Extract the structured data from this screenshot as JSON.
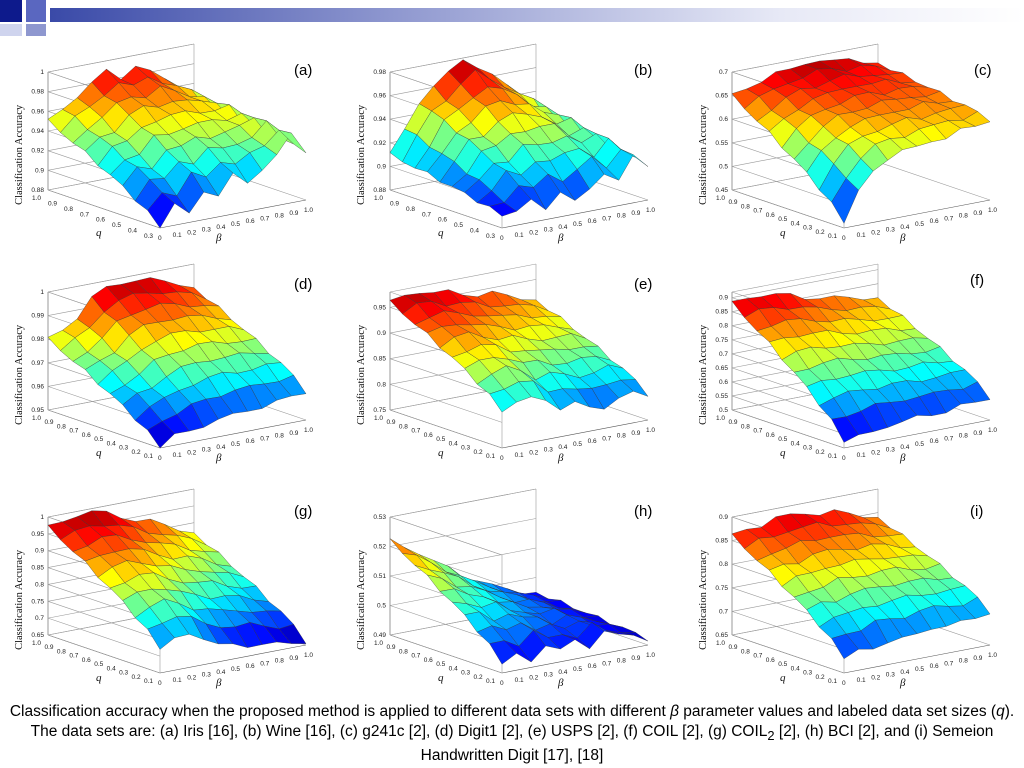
{
  "colors": {
    "brand_dark": "#0d1a8c",
    "brand_mid": "#5a67c0",
    "brand_light": "#cfd4ee",
    "gradient_start": "#3a4aa8"
  },
  "chart_data": [
    {
      "id": "a",
      "type": "surface3d",
      "label": "(a)",
      "zlabel": "Classification Accuracy",
      "xlabel": "q",
      "ylabel": "β",
      "q_ticks": [
        "1.0",
        "0.9",
        "0.8",
        "0.7",
        "0.6",
        "0.5",
        "0.4",
        "0.3"
      ],
      "beta_ticks": [
        "0",
        "0.1",
        "0.2",
        "0.3",
        "0.4",
        "0.5",
        "0.6",
        "0.7",
        "0.8",
        "0.9",
        "1.0"
      ],
      "z_ticks": [
        "0.88",
        "0.9",
        "0.92",
        "0.94",
        "0.96",
        "0.98",
        "1"
      ],
      "zlim": [
        0.88,
        1.0
      ],
      "z_front": [
        0.88,
        0.9,
        0.89,
        0.91,
        0.9,
        0.92,
        0.91,
        0.92,
        0.93,
        0.95,
        0.93
      ],
      "z_back": [
        0.95,
        0.96,
        0.97,
        0.98,
        0.99,
        0.98,
        0.99,
        0.98,
        0.97,
        0.96,
        0.94
      ]
    },
    {
      "id": "b",
      "type": "surface3d",
      "label": "(b)",
      "zlabel": "Classification Accuracy",
      "xlabel": "q",
      "ylabel": "β",
      "q_ticks": [
        "1.0",
        "0.9",
        "0.8",
        "0.7",
        "0.6",
        "0.5",
        "0.4",
        "0.3"
      ],
      "beta_ticks": [
        "0",
        "0.1",
        "0.2",
        "0.3",
        "0.4",
        "0.5",
        "0.6",
        "0.7",
        "0.8",
        "0.9",
        "1.0"
      ],
      "z_ticks": [
        "0.88",
        "0.9",
        "0.92",
        "0.94",
        "0.96",
        "0.98"
      ],
      "zlim": [
        0.88,
        0.98
      ],
      "z_front": [
        0.89,
        0.89,
        0.9,
        0.89,
        0.9,
        0.89,
        0.9,
        0.91,
        0.9,
        0.92,
        0.91
      ],
      "z_back": [
        0.91,
        0.93,
        0.95,
        0.96,
        0.97,
        0.98,
        0.97,
        0.96,
        0.95,
        0.94,
        0.92
      ]
    },
    {
      "id": "c",
      "type": "surface3d",
      "label": "(c)",
      "zlabel": "Classification Accuracy",
      "xlabel": "q",
      "ylabel": "β",
      "q_ticks": [
        "1.0",
        "0.9",
        "0.8",
        "0.7",
        "0.6",
        "0.5",
        "0.4",
        "0.3",
        "0.2",
        "0.1"
      ],
      "beta_ticks": [
        "0",
        "0.1",
        "0.2",
        "0.3",
        "0.4",
        "0.5",
        "0.6",
        "0.7",
        "0.8",
        "0.9",
        "1.0"
      ],
      "z_ticks": [
        "0.45",
        "0.5",
        "0.55",
        "0.6",
        "0.65",
        "0.7"
      ],
      "zlim": [
        0.45,
        0.7
      ],
      "z_front": [
        0.46,
        0.52,
        0.56,
        0.58,
        0.59,
        0.59,
        0.6,
        0.6,
        0.61,
        0.61,
        0.62
      ],
      "z_back": [
        0.65,
        0.66,
        0.67,
        0.68,
        0.68,
        0.69,
        0.69,
        0.68,
        0.68,
        0.67,
        0.66
      ]
    },
    {
      "id": "d",
      "type": "surface3d",
      "label": "(d)",
      "zlabel": "Classification Accuracy",
      "xlabel": "q",
      "ylabel": "β",
      "q_ticks": [
        "1.0",
        "0.9",
        "0.8",
        "0.7",
        "0.6",
        "0.5",
        "0.4",
        "0.3",
        "0.2",
        "0.1"
      ],
      "beta_ticks": [
        "0",
        "0.1",
        "0.2",
        "0.3",
        "0.4",
        "0.5",
        "0.6",
        "0.7",
        "0.8",
        "0.9",
        "1.0"
      ],
      "z_ticks": [
        "0.95",
        "0.96",
        "0.97",
        "0.98",
        "0.99",
        "1"
      ],
      "zlim": [
        0.95,
        1.0
      ],
      "z_front": [
        0.95,
        0.954,
        0.955,
        0.956,
        0.957,
        0.958,
        0.959,
        0.959,
        0.96,
        0.961,
        0.962
      ],
      "z_back": [
        0.98,
        0.983,
        0.987,
        0.994,
        0.997,
        0.998,
        0.998,
        0.997,
        0.995,
        0.993,
        0.99
      ]
    },
    {
      "id": "e",
      "type": "surface3d",
      "label": "(e)",
      "zlabel": "Classification Accuracy",
      "xlabel": "q",
      "ylabel": "β",
      "q_ticks": [
        "1.0",
        "0.9",
        "0.8",
        "0.7",
        "0.6",
        "0.5",
        "0.4",
        "0.3",
        "0.2",
        "0.1"
      ],
      "beta_ticks": [
        "0",
        "0.1",
        "0.2",
        "0.3",
        "0.4",
        "0.5",
        "0.6",
        "0.7",
        "0.8",
        "0.9",
        "1.0"
      ],
      "z_ticks": [
        "0.75",
        "0.8",
        "0.85",
        "0.9",
        "0.95"
      ],
      "zlim": [
        0.75,
        0.98
      ],
      "z_front": [
        0.82,
        0.83,
        0.84,
        0.83,
        0.8,
        0.81,
        0.8,
        0.79,
        0.8,
        0.81,
        0.8
      ],
      "z_back": [
        0.96,
        0.97,
        0.97,
        0.96,
        0.96,
        0.95,
        0.94,
        0.94,
        0.93,
        0.92,
        0.91
      ]
    },
    {
      "id": "f",
      "type": "surface3d",
      "label": "(f)",
      "zlabel": "Classification Accuracy",
      "xlabel": "q",
      "ylabel": "β",
      "q_ticks": [
        "1.0",
        "0.9",
        "0.8",
        "0.7",
        "0.6",
        "0.5",
        "0.4",
        "0.3",
        "0.2",
        "0.1"
      ],
      "beta_ticks": [
        "0",
        "0.1",
        "0.2",
        "0.3",
        "0.4",
        "0.5",
        "0.6",
        "0.7",
        "0.8",
        "0.9",
        "1.0"
      ],
      "z_ticks": [
        "0.5",
        "0.55",
        "0.6",
        "0.65",
        "0.7",
        "0.75",
        "0.8",
        "0.85",
        "0.9"
      ],
      "zlim": [
        0.5,
        0.92
      ],
      "z_front": [
        0.52,
        0.53,
        0.54,
        0.55,
        0.55,
        0.56,
        0.56,
        0.56,
        0.57,
        0.57,
        0.58
      ],
      "z_back": [
        0.88,
        0.89,
        0.89,
        0.88,
        0.87,
        0.85,
        0.84,
        0.83,
        0.82,
        0.81,
        0.8
      ]
    },
    {
      "id": "g",
      "type": "surface3d",
      "label": "(g)",
      "zlabel": "Classification Accuracy",
      "xlabel": "q",
      "ylabel": "β",
      "q_ticks": [
        "1.0",
        "0.9",
        "0.8",
        "0.7",
        "0.6",
        "0.5",
        "0.4",
        "0.3",
        "0.2",
        "0.1"
      ],
      "beta_ticks": [
        "0",
        "0.1",
        "0.2",
        "0.3",
        "0.4",
        "0.5",
        "0.6",
        "0.7",
        "0.8",
        "0.9",
        "1.0"
      ],
      "z_ticks": [
        "0.65",
        "0.7",
        "0.75",
        "0.8",
        "0.85",
        "0.9",
        "0.95",
        "1"
      ],
      "zlim": [
        0.65,
        1.0
      ],
      "z_front": [
        0.72,
        0.74,
        0.75,
        0.73,
        0.7,
        0.69,
        0.68,
        0.68,
        0.67,
        0.66,
        0.66
      ],
      "z_back": [
        0.97,
        0.98,
        0.99,
        0.99,
        0.98,
        0.96,
        0.94,
        0.93,
        0.91,
        0.89,
        0.87
      ]
    },
    {
      "id": "h",
      "type": "surface3d",
      "label": "(h)",
      "zlabel": "Classification Accuracy",
      "xlabel": "q",
      "ylabel": "β",
      "q_ticks": [
        "1.0",
        "0.9",
        "0.8",
        "0.7",
        "0.6",
        "0.5",
        "0.4",
        "0.3",
        "0.2",
        "0.1"
      ],
      "beta_ticks": [
        "0",
        "0.1",
        "0.2",
        "0.3",
        "0.4",
        "0.5",
        "0.6",
        "0.7",
        "0.8",
        "0.9",
        "1.0"
      ],
      "z_ticks": [
        "0.49",
        "0.5",
        "0.51",
        "0.52",
        "0.53"
      ],
      "zlim": [
        0.49,
        0.53
      ],
      "z_front": [
        0.493,
        0.495,
        0.492,
        0.497,
        0.494,
        0.496,
        0.493,
        0.498,
        0.495,
        0.494,
        0.492
      ],
      "z_back": [
        0.522,
        0.519,
        0.516,
        0.512,
        0.509,
        0.505,
        0.503,
        0.5,
        0.498,
        0.496,
        0.495
      ]
    },
    {
      "id": "i",
      "type": "surface3d",
      "label": "(i)",
      "zlabel": "Classification Accuracy",
      "xlabel": "q",
      "ylabel": "β",
      "q_ticks": [
        "1.0",
        "0.9",
        "0.8",
        "0.7",
        "0.6",
        "0.5",
        "0.4",
        "0.3",
        "0.2",
        "0.1"
      ],
      "beta_ticks": [
        "0",
        "0.1",
        "0.2",
        "0.3",
        "0.4",
        "0.5",
        "0.6",
        "0.7",
        "0.8",
        "0.9",
        "1.0"
      ],
      "z_ticks": [
        "0.65",
        "0.7",
        "0.75",
        "0.8",
        "0.85",
        "0.9"
      ],
      "zlim": [
        0.65,
        0.9
      ],
      "z_front": [
        0.68,
        0.69,
        0.69,
        0.7,
        0.7,
        0.7,
        0.71,
        0.71,
        0.71,
        0.71,
        0.72
      ],
      "z_back": [
        0.86,
        0.87,
        0.87,
        0.88,
        0.88,
        0.88,
        0.87,
        0.87,
        0.86,
        0.85,
        0.84
      ]
    }
  ],
  "caption": {
    "part1": "Classification accuracy when the proposed method is applied to different data sets with different ",
    "beta": "β",
    "part2": " parameter values and labeled data set sizes (",
    "q": "q",
    "part3": "). The data sets are: (a) Iris [16], (b) Wine [16], (c) g241c [2], (d) Digit1 [2], (e) USPS [2], (f) COIL [2], (g) COIL",
    "sub": "2",
    "part4": " [2], (h) BCI [2], and (i) Semeion Handwritten Digit [17], [18]"
  }
}
